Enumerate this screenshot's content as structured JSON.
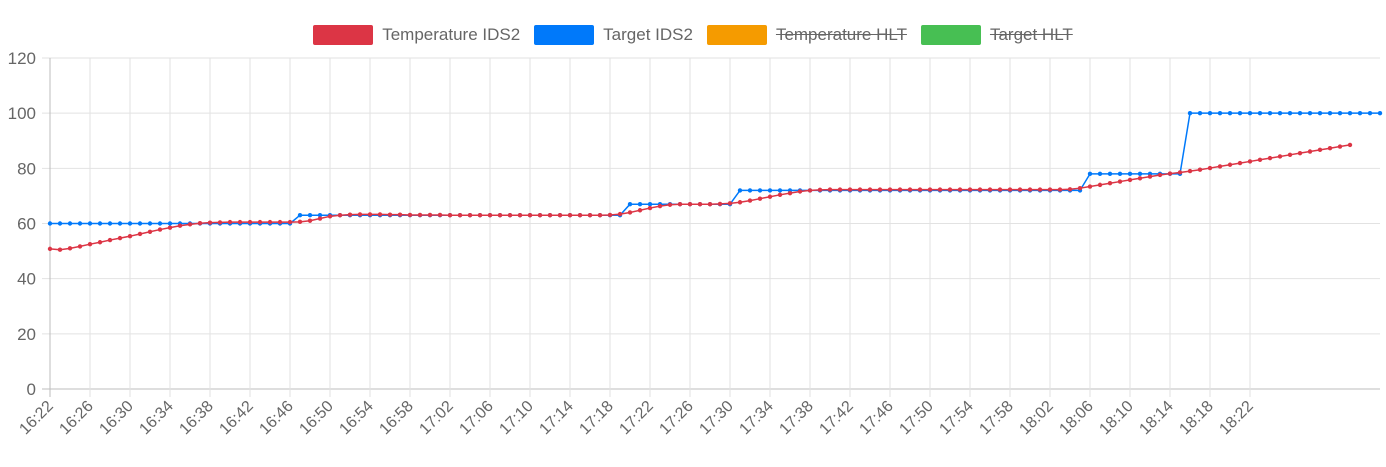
{
  "chart_data": {
    "type": "line",
    "title": "",
    "xlabel": "",
    "ylabel": "",
    "ylim": [
      0,
      120
    ],
    "yticks": [
      0,
      20,
      40,
      60,
      80,
      100,
      120
    ],
    "grid": true,
    "legend_position": "top-center",
    "time_start": "16:22",
    "time_step_minutes": 1,
    "x_tick_labels": [
      "16:22",
      "16:26",
      "16:30",
      "16:34",
      "16:38",
      "16:42",
      "16:46",
      "16:50",
      "16:54",
      "16:58",
      "17:02",
      "17:06",
      "17:10",
      "17:14",
      "17:18",
      "17:22",
      "17:26",
      "17:30",
      "17:34",
      "17:38",
      "17:42",
      "17:46",
      "17:50",
      "17:54",
      "17:58",
      "18:02",
      "18:06",
      "18:10",
      "18:14",
      "18:18",
      "18:22"
    ],
    "series": [
      {
        "name": "Temperature IDS2",
        "color": "#dc3545",
        "hidden": false,
        "values": [
          50.8,
          50.5,
          51,
          51.7,
          52.5,
          53.2,
          54,
          54.7,
          55.4,
          56.2,
          57,
          57.8,
          58.5,
          59.2,
          59.7,
          60.1,
          60.3,
          60.4,
          60.5,
          60.5,
          60.5,
          60.5,
          60.5,
          60.5,
          60.5,
          60.6,
          61,
          61.8,
          62.6,
          63,
          63.2,
          63.3,
          63.3,
          63.3,
          63.2,
          63.2,
          63.1,
          63.1,
          63.1,
          63.1,
          63,
          63,
          63,
          63,
          63,
          63,
          63,
          63,
          63,
          63,
          63,
          63,
          63,
          63,
          63,
          63,
          63.1,
          63.4,
          64,
          64.8,
          65.6,
          66.3,
          66.8,
          67,
          67,
          67,
          67,
          67.1,
          67.3,
          67.7,
          68.3,
          69,
          69.7,
          70.4,
          71,
          71.6,
          72,
          72.2,
          72.3,
          72.3,
          72.3,
          72.3,
          72.3,
          72.3,
          72.3,
          72.3,
          72.3,
          72.3,
          72.3,
          72.3,
          72.3,
          72.3,
          72.3,
          72.3,
          72.3,
          72.3,
          72.3,
          72.3,
          72.3,
          72.3,
          72.3,
          72.3,
          72.4,
          72.8,
          73.4,
          74,
          74.6,
          75.2,
          75.8,
          76.4,
          77,
          77.6,
          78.1,
          78.5,
          79,
          79.5,
          80.1,
          80.7,
          81.3,
          81.9,
          82.5,
          83.1,
          83.7,
          84.3,
          84.9,
          85.5,
          86.1,
          86.7,
          87.3,
          87.9,
          88.5
        ]
      },
      {
        "name": "Target IDS2",
        "color": "#0079fa",
        "hidden": false,
        "values": [
          60,
          60,
          60,
          60,
          60,
          60,
          60,
          60,
          60,
          60,
          60,
          60,
          60,
          60,
          60,
          60,
          60,
          60,
          60,
          60,
          60,
          60,
          60,
          60,
          60,
          63,
          63,
          63,
          63,
          63,
          63,
          63,
          63,
          63,
          63,
          63,
          63,
          63,
          63,
          63,
          63,
          63,
          63,
          63,
          63,
          63,
          63,
          63,
          63,
          63,
          63,
          63,
          63,
          63,
          63,
          63,
          63,
          63,
          67,
          67,
          67,
          67,
          67,
          67,
          67,
          67,
          67,
          67,
          67,
          72,
          72,
          72,
          72,
          72,
          72,
          72,
          72,
          72,
          72,
          72,
          72,
          72,
          72,
          72,
          72,
          72,
          72,
          72,
          72,
          72,
          72,
          72,
          72,
          72,
          72,
          72,
          72,
          72,
          72,
          72,
          72,
          72,
          72,
          72,
          78,
          78,
          78,
          78,
          78,
          78,
          78,
          78,
          78,
          78,
          100,
          100,
          100,
          100,
          100,
          100,
          100,
          100,
          100,
          100,
          100,
          100,
          100,
          100,
          100,
          100,
          100,
          100,
          100,
          100
        ]
      },
      {
        "name": "Temperature HLT",
        "color": "#f59b00",
        "hidden": true,
        "values": []
      },
      {
        "name": "Target HLT",
        "color": "#47bf53",
        "hidden": true,
        "values": []
      }
    ]
  }
}
